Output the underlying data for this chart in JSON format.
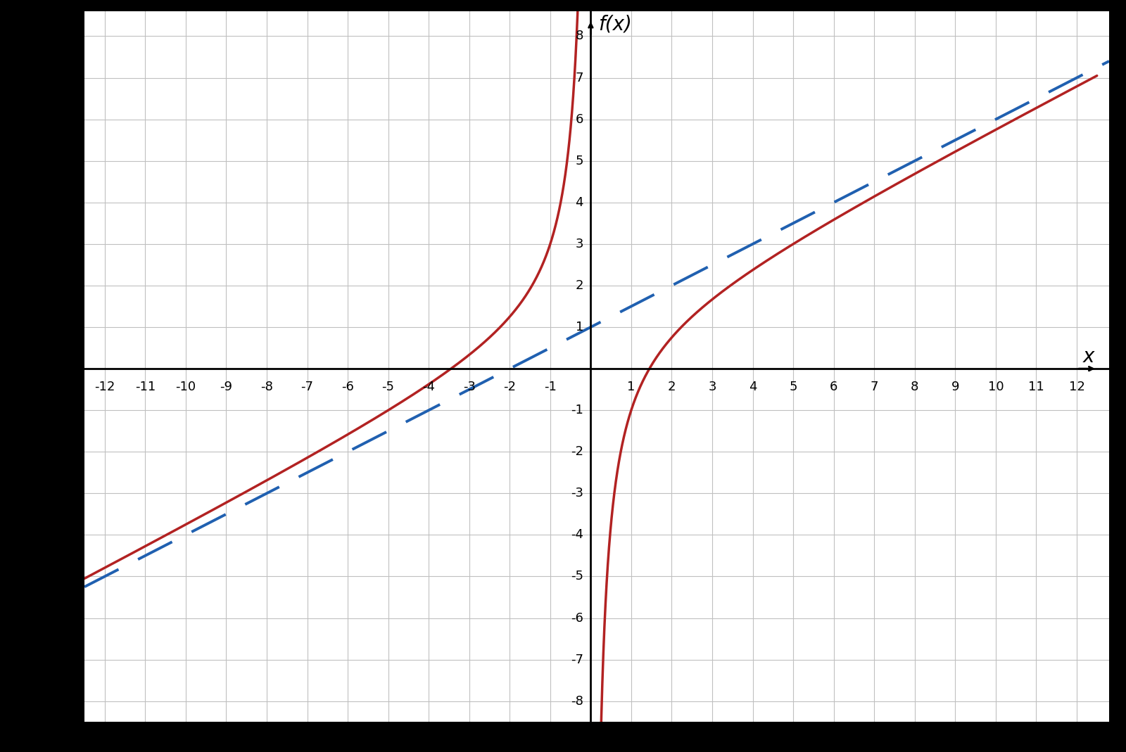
{
  "xlim_data": [
    -12,
    12
  ],
  "ylim_data": [
    -8,
    8
  ],
  "xlim_plot": [
    -12.5,
    12.8
  ],
  "ylim_plot": [
    -8.5,
    8.6
  ],
  "xticks": [
    -12,
    -11,
    -10,
    -9,
    -8,
    -7,
    -6,
    -5,
    -4,
    -3,
    -2,
    -1,
    1,
    2,
    3,
    4,
    5,
    6,
    7,
    8,
    9,
    10,
    11,
    12
  ],
  "yticks": [
    -8,
    -7,
    -6,
    -5,
    -4,
    -3,
    -2,
    -1,
    1,
    2,
    3,
    4,
    5,
    6,
    7,
    8
  ],
  "curve_color": "#b22222",
  "asymptote_color": "#2060b0",
  "plot_bg_color": "#ffffff",
  "outer_bg_color": "#000000",
  "grid_color": "#c0c0c0",
  "curve_linewidth": 2.5,
  "asymptote_linewidth": 2.8,
  "asymptote_slope": 0.5,
  "asymptote_intercept": 1.0,
  "func_a": 0.5,
  "func_b": 1.0,
  "func_c": -2.5,
  "label_x": "x",
  "label_y": "f(x)",
  "tick_fontsize": 13,
  "label_fontsize": 20,
  "spine_linewidth": 2.0,
  "border_thickness": 18
}
